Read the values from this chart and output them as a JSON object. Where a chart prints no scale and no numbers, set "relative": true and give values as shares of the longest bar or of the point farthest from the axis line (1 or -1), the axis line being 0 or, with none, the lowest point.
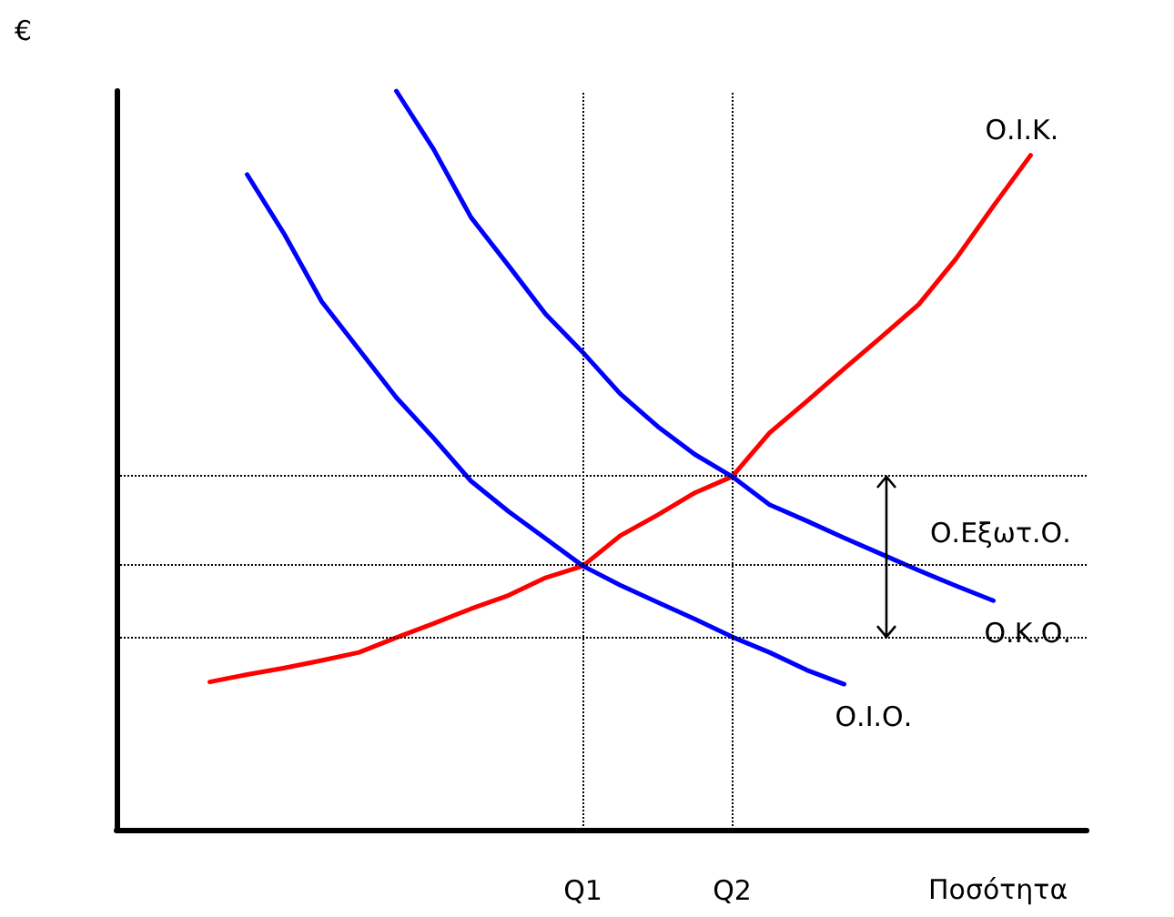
{
  "chart_data": {
    "type": "line",
    "relative": true,
    "ylabel": "€",
    "xlabel": "Ποσότητα",
    "categories": [
      null,
      null,
      null,
      null,
      null,
      null,
      null,
      null,
      null,
      null,
      null,
      null,
      "Q1",
      null,
      null,
      null,
      "Q2",
      null,
      null,
      null,
      null,
      null,
      null,
      null,
      null,
      null
    ],
    "legend": false,
    "grid": false,
    "marker": "none",
    "line_style": "solid",
    "series": [
      {
        "name": "Ο.Ι.Κ.",
        "color": "#ff0000",
        "values": [
          null,
          null,
          0.2,
          0.21,
          0.219,
          0.229,
          0.24,
          0.26,
          0.279,
          0.299,
          0.317,
          0.341,
          0.357,
          0.398,
          0.426,
          0.456,
          0.478,
          0.537,
          0.58,
          0.624,
          0.667,
          0.711,
          0.773,
          0.844,
          0.913,
          null
        ]
      },
      {
        "name": "Ο.Κ.Ο.",
        "color": "#0000ff",
        "values": [
          null,
          null,
          null,
          null,
          null,
          null,
          null,
          1.0,
          0.921,
          0.829,
          0.764,
          0.698,
          0.646,
          0.59,
          0.546,
          0.508,
          0.478,
          0.44,
          0.418,
          0.395,
          0.373,
          0.351,
          0.33,
          0.31,
          null,
          null
        ]
      },
      {
        "name": "Ο.Ι.Ο.",
        "color": "#0000ff",
        "values": [
          null,
          null,
          null,
          0.887,
          0.806,
          0.715,
          0.65,
          0.585,
          0.53,
          0.472,
          0.431,
          0.394,
          0.357,
          0.331,
          0.308,
          0.285,
          0.261,
          0.24,
          0.216,
          0.197,
          null,
          null,
          null,
          null,
          null,
          null
        ]
      }
    ],
    "ref_lines": [
      {
        "axis": "y",
        "value": 0.478,
        "line_style": "dotted",
        "color": "#000000"
      },
      {
        "axis": "y",
        "value": 0.357,
        "line_style": "dotted",
        "color": "#000000"
      },
      {
        "axis": "y",
        "value": 0.261,
        "line_style": "dotted",
        "color": "#000000"
      },
      {
        "axis": "x",
        "value": "Q1",
        "line_style": "dotted",
        "color": "#000000"
      },
      {
        "axis": "x",
        "value": "Q2",
        "line_style": "dotted",
        "color": "#000000"
      }
    ],
    "annotations": [
      "Ο.Εξωτ.Ο."
    ]
  }
}
